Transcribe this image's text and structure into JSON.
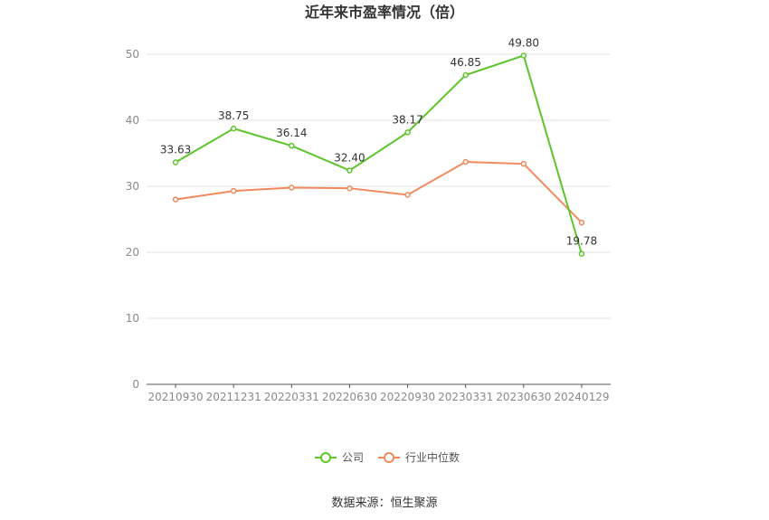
{
  "chart_data": {
    "type": "line",
    "title": "近年来市盈率情况（倍）",
    "categories": [
      "20210930",
      "20211231",
      "20220331",
      "20220630",
      "20220930",
      "20230331",
      "20230630",
      "20240129"
    ],
    "series": [
      {
        "name": "公司",
        "values": [
          33.63,
          38.75,
          36.14,
          32.4,
          38.17,
          46.85,
          49.8,
          19.78
        ],
        "color": "#5cc52b",
        "labels": [
          "33.63",
          "38.75",
          "36.14",
          "32.40",
          "38.17",
          "46.85",
          "49.80",
          "19.78"
        ]
      },
      {
        "name": "行业中位数",
        "values": [
          28.0,
          29.3,
          29.8,
          29.7,
          28.7,
          33.7,
          33.4,
          24.5
        ],
        "color": "#f08a5d"
      }
    ],
    "ylim": [
      0,
      50
    ],
    "yticks": [
      "0",
      "10",
      "20",
      "30",
      "40",
      "50"
    ],
    "grid": true,
    "legend_position": "bottom"
  },
  "source": "数据来源：恒生聚源"
}
